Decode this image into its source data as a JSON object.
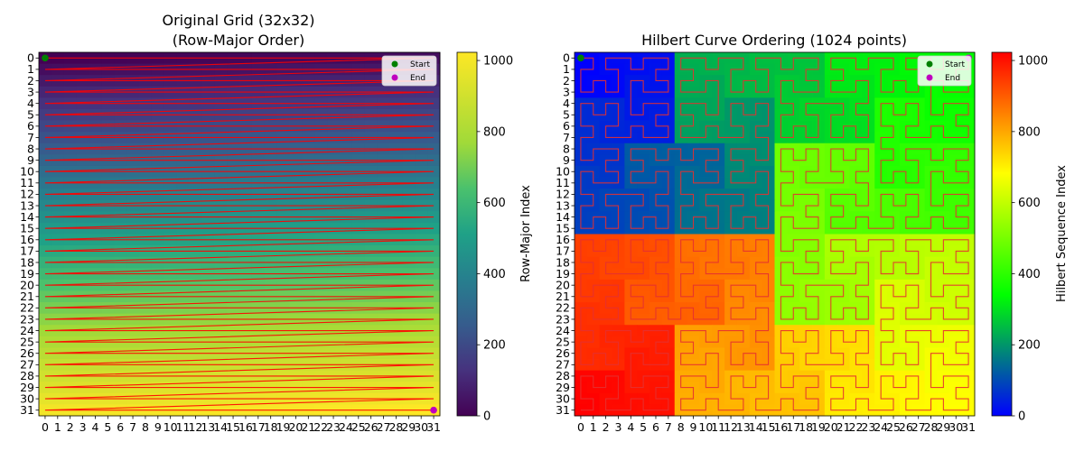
{
  "chart_data": [
    {
      "type": "heatmap",
      "title": "Original Grid (32x32)",
      "subtitle": "(Row-Major Order)",
      "xlabel": "",
      "ylabel": "",
      "grid_size": 32,
      "x_ticks": [
        0,
        1,
        2,
        3,
        4,
        5,
        6,
        7,
        8,
        9,
        10,
        11,
        12,
        13,
        14,
        15,
        16,
        17,
        18,
        19,
        20,
        21,
        22,
        23,
        24,
        25,
        26,
        27,
        28,
        29,
        30,
        31
      ],
      "y_ticks": [
        0,
        1,
        2,
        3,
        4,
        5,
        6,
        7,
        8,
        9,
        10,
        11,
        12,
        13,
        14,
        15,
        16,
        17,
        18,
        19,
        20,
        21,
        22,
        23,
        24,
        25,
        26,
        27,
        28,
        29,
        30,
        31
      ],
      "value_rule": "row-major index = row*32 + col",
      "colormap": "viridis",
      "path_color": "#ff0000",
      "colorbar": {
        "label": "Row-Major Index",
        "range": [
          0,
          1023
        ],
        "ticks": [
          0,
          200,
          400,
          600,
          800,
          1000
        ]
      },
      "legend": {
        "position": "top-right",
        "entries": [
          {
            "label": "Start",
            "color": "#008000"
          },
          {
            "label": "End",
            "color": "#bf00bf"
          }
        ]
      },
      "start_point": [
        0,
        0
      ],
      "end_point": [
        31,
        31
      ]
    },
    {
      "type": "heatmap",
      "title": "Hilbert Curve Ordering (1024 points)",
      "xlabel": "",
      "ylabel": "",
      "grid_size": 32,
      "x_ticks": [
        0,
        1,
        2,
        3,
        4,
        5,
        6,
        7,
        8,
        9,
        10,
        11,
        12,
        13,
        14,
        15,
        16,
        17,
        18,
        19,
        20,
        21,
        22,
        23,
        24,
        25,
        26,
        27,
        28,
        29,
        30,
        31
      ],
      "y_ticks": [
        0,
        1,
        2,
        3,
        4,
        5,
        6,
        7,
        8,
        9,
        10,
        11,
        12,
        13,
        14,
        15,
        16,
        17,
        18,
        19,
        20,
        21,
        22,
        23,
        24,
        25,
        26,
        27,
        28,
        29,
        30,
        31
      ],
      "value_rule": "hilbert sequence index d (order 5)",
      "colormap": "blue-green-yellow-red",
      "path_color": "#e53030",
      "colorbar": {
        "label": "Hilbert Sequence Index",
        "range": [
          0,
          1023
        ],
        "ticks": [
          0,
          200,
          400,
          600,
          800,
          1000
        ]
      },
      "legend": {
        "position": "top-right",
        "entries": [
          {
            "label": "Start",
            "color": "#008000"
          },
          {
            "label": "End",
            "color": "#bf00bf"
          }
        ]
      },
      "start_point": [
        0,
        0
      ],
      "end_point": [
        31,
        0
      ]
    }
  ]
}
